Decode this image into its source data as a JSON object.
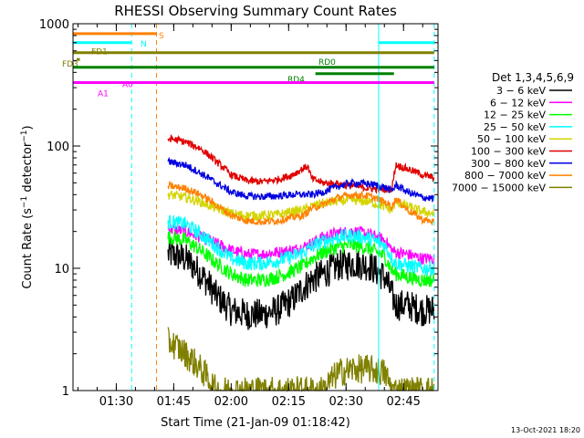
{
  "chart_data": {
    "type": "line",
    "title": "RHESSI Observing Summary Count Rates",
    "xlabel": "Start Time (21-Jan-09 01:18:42)",
    "ylabel": "Count Rate (s⁻¹ detector⁻¹)",
    "ylabel_parts": {
      "main": "Count Rate (s",
      "sup1": "−1",
      "mid": " detector",
      "sup2": "−1",
      "end": ")"
    },
    "timestamp": "13-Oct-2021 18:20",
    "y_scale": "log",
    "ylim": [
      1,
      1000
    ],
    "xlim": [
      "01:18:42",
      "02:54:00"
    ],
    "x_ticks": [
      "01:30",
      "01:45",
      "02:00",
      "02:15",
      "02:30",
      "02:45"
    ],
    "y_ticks": [
      "1",
      "10",
      "100",
      "1000"
    ],
    "legend": {
      "placement": "right",
      "title": "Det 1,3,4,5,6,9",
      "entries": [
        {
          "label": "3 − 6 keV",
          "color": "#000000"
        },
        {
          "label": "6 − 12 keV",
          "color": "#ff00ff"
        },
        {
          "label": "12 − 25 keV",
          "color": "#00ff00"
        },
        {
          "label": "25 − 50 keV",
          "color": "#00ffff"
        },
        {
          "label": "50 − 100 keV",
          "color": "#d4d400"
        },
        {
          "label": "100 − 300 keV",
          "color": "#e00000"
        },
        {
          "label": "300 − 800 keV",
          "color": "#0000e0"
        },
        {
          "label": "800 − 7000 keV",
          "color": "#ff8000"
        },
        {
          "label": "7000 − 15000 keV",
          "color": "#808000"
        }
      ]
    },
    "series": [
      {
        "name": "3 − 6 keV",
        "color": "#000000",
        "noise": 0.13,
        "x": [
          "01:43:30",
          "01:44",
          "01:48",
          "01:52",
          "01:56",
          "02:00",
          "02:04",
          "02:08",
          "02:12",
          "02:16",
          "02:19",
          "02:21",
          "02:24",
          "02:28",
          "02:32",
          "02:36",
          "02:40",
          "02:42",
          "02:43",
          "02:46",
          "02:50",
          "02:53"
        ],
        "y": [
          13,
          13,
          12,
          9,
          6,
          4.5,
          4.2,
          4.2,
          4.5,
          5.5,
          7,
          8,
          9,
          10.5,
          11,
          10.5,
          8.5,
          6,
          5,
          5,
          4.5,
          4.6
        ]
      },
      {
        "name": "6 − 12 keV",
        "color": "#ff00ff",
        "noise": 0.05,
        "x": [
          "01:43:30",
          "01:44",
          "01:48",
          "01:52",
          "01:56",
          "02:00",
          "02:04",
          "02:08",
          "02:12",
          "02:16",
          "02:19",
          "02:21",
          "02:24",
          "02:28",
          "02:32",
          "02:36",
          "02:40",
          "02:42",
          "02:43",
          "02:46",
          "02:50",
          "02:53"
        ],
        "y": [
          21,
          21,
          20,
          18,
          16,
          14,
          13,
          13,
          13.5,
          14,
          15,
          16,
          18,
          19.5,
          20,
          19,
          17,
          14,
          13.5,
          13,
          12,
          12
        ]
      },
      {
        "name": "12 − 25 keV",
        "color": "#00ff00",
        "noise": 0.06,
        "x": [
          "01:43:30",
          "01:44",
          "01:48",
          "01:52",
          "01:56",
          "02:00",
          "02:04",
          "02:08",
          "02:12",
          "02:16",
          "02:19",
          "02:21",
          "02:24",
          "02:28",
          "02:32",
          "02:36",
          "02:40",
          "02:42",
          "02:43",
          "02:46",
          "02:50",
          "02:53"
        ],
        "y": [
          18,
          18,
          17,
          14,
          11,
          9,
          8,
          8,
          8.5,
          9.5,
          10.5,
          12,
          13.5,
          15,
          15.5,
          14.5,
          12.5,
          9.5,
          9,
          8.5,
          8,
          8
        ]
      },
      {
        "name": "25 − 50 keV",
        "color": "#00ffff",
        "noise": 0.06,
        "x": [
          "01:43:30",
          "01:44",
          "01:48",
          "01:52",
          "01:56",
          "02:00",
          "02:04",
          "02:08",
          "02:12",
          "02:16",
          "02:19",
          "02:21",
          "02:24",
          "02:28",
          "02:32",
          "02:36",
          "02:40",
          "02:42",
          "02:43",
          "02:46",
          "02:50",
          "02:53"
        ],
        "y": [
          24,
          24,
          23,
          19,
          15,
          12,
          11,
          11,
          11.5,
          12.5,
          13.5,
          15,
          16.5,
          18,
          18.5,
          17.5,
          15.5,
          12,
          11,
          10.5,
          10,
          10
        ]
      },
      {
        "name": "50 − 100 keV",
        "color": "#d4d400",
        "noise": 0.04,
        "x": [
          "01:43:30",
          "01:44",
          "01:48",
          "01:52",
          "01:56",
          "02:00",
          "02:04",
          "02:08",
          "02:12",
          "02:16",
          "02:19",
          "02:21",
          "02:24",
          "02:28",
          "02:32",
          "02:36",
          "02:40",
          "02:42",
          "02:43",
          "02:46",
          "02:50",
          "02:53"
        ],
        "y": [
          40,
          40,
          38,
          35,
          31,
          28,
          27,
          27,
          27.5,
          29,
          30,
          32,
          34,
          35.5,
          36,
          35,
          32,
          30,
          35,
          32,
          29,
          28
        ]
      },
      {
        "name": "100 − 300 keV",
        "color": "#e00000",
        "noise": 0.03,
        "x": [
          "01:43:30",
          "01:44",
          "01:48",
          "01:52",
          "01:56",
          "02:00",
          "02:04",
          "02:08",
          "02:12",
          "02:16",
          "02:19",
          "02:20",
          "02:21",
          "02:24",
          "02:28",
          "02:32",
          "02:36",
          "02:40",
          "02:42",
          "02:43",
          "02:46",
          "02:50",
          "02:53"
        ],
        "y": [
          112,
          115,
          108,
          95,
          75,
          58,
          52,
          51,
          53,
          58,
          66,
          68,
          54,
          50,
          49,
          47,
          45,
          44,
          45,
          70,
          65,
          58,
          55
        ]
      },
      {
        "name": "300 − 800 keV",
        "color": "#0000e0",
        "noise": 0.03,
        "x": [
          "01:43:30",
          "01:44",
          "01:48",
          "01:52",
          "01:56",
          "02:00",
          "02:04",
          "02:08",
          "02:12",
          "02:16",
          "02:19",
          "02:21",
          "02:24",
          "02:28",
          "02:32",
          "02:36",
          "02:40",
          "02:42",
          "02:43",
          "02:46",
          "02:50",
          "02:53"
        ],
        "y": [
          74,
          74,
          70,
          60,
          50,
          42,
          39,
          38.5,
          39,
          40,
          40,
          40,
          42,
          47,
          50,
          49,
          46,
          43,
          48,
          42,
          38,
          37
        ]
      },
      {
        "name": "800 − 7000 keV",
        "color": "#ff8000",
        "noise": 0.03,
        "x": [
          "01:43:30",
          "01:44",
          "01:48",
          "01:52",
          "01:56",
          "02:00",
          "02:04",
          "02:08",
          "02:12",
          "02:16",
          "02:19",
          "02:21",
          "02:24",
          "02:28",
          "02:32",
          "02:36",
          "02:40",
          "02:42",
          "02:43",
          "02:46",
          "02:50",
          "02:53"
        ],
        "y": [
          47,
          47,
          45,
          40,
          33,
          27,
          24.5,
          24,
          24.5,
          26,
          27,
          31,
          33,
          38,
          40,
          39,
          35,
          32,
          37,
          30,
          25,
          24
        ]
      },
      {
        "name": "7000 − 15000 keV",
        "color": "#808000",
        "noise": 0.12,
        "x": [
          "01:43:30",
          "01:44",
          "01:48",
          "01:52",
          "01:56",
          "02:00",
          "02:04",
          "02:08",
          "02:12",
          "02:16",
          "02:19",
          "02:21",
          "02:24",
          "02:28",
          "02:32",
          "02:36",
          "02:40",
          "02:42",
          "02:43",
          "02:46",
          "02:50",
          "02:53"
        ],
        "y": [
          2.5,
          2.5,
          2.0,
          1.5,
          1.0,
          1.0,
          1.0,
          1.0,
          1.0,
          1.0,
          1.0,
          1.0,
          1.0,
          1.4,
          1.5,
          1.5,
          1.4,
          1.0,
          1.0,
          1.0,
          1.0,
          1.0
        ]
      }
    ],
    "annotations": {
      "eclipse_lines": {
        "color": "#00ffff",
        "solid": [
          "01:18:42",
          "02:38:30"
        ],
        "dashed": [
          "01:34:00",
          "02:53:00"
        ]
      },
      "saa_line": {
        "color": "#ff8000",
        "dashed": [
          "01:40:30"
        ]
      },
      "flag_bars": [
        {
          "label": "S",
          "color": "#ff8000",
          "y": 830,
          "segments": [
            [
              "01:18:42",
              "01:40:30"
            ]
          ]
        },
        {
          "label": "N",
          "color": "#00ffff",
          "y": 700,
          "segments": [
            [
              "01:18:42",
              "01:34:00"
            ],
            [
              "02:38:30",
              "02:53:00"
            ]
          ]
        },
        {
          "label": "FD1",
          "color": "#808000",
          "y": 580,
          "segments": [
            [
              "01:18:42",
              "02:53:00"
            ]
          ]
        },
        {
          "label": "FD3",
          "color": "#808000",
          "y": 510,
          "segments": [
            [
              "01:19:40",
              "01:20:30"
            ]
          ]
        },
        {
          "label": "RD0",
          "color": "#008000",
          "y": 440,
          "segments": [
            [
              "01:18:42",
              "02:53:00"
            ]
          ]
        },
        {
          "label": "RD4",
          "color": "#008000",
          "y": 390,
          "segments": [
            [
              "02:22:00",
              "02:42:30"
            ]
          ]
        },
        {
          "label": "A0",
          "color": "#ff00ff",
          "y": 330,
          "segments": [
            [
              "01:18:42",
              "02:53:00"
            ]
          ]
        },
        {
          "label": "A1",
          "color": "#ff00ff",
          "y": 320,
          "segments": []
        }
      ]
    }
  }
}
